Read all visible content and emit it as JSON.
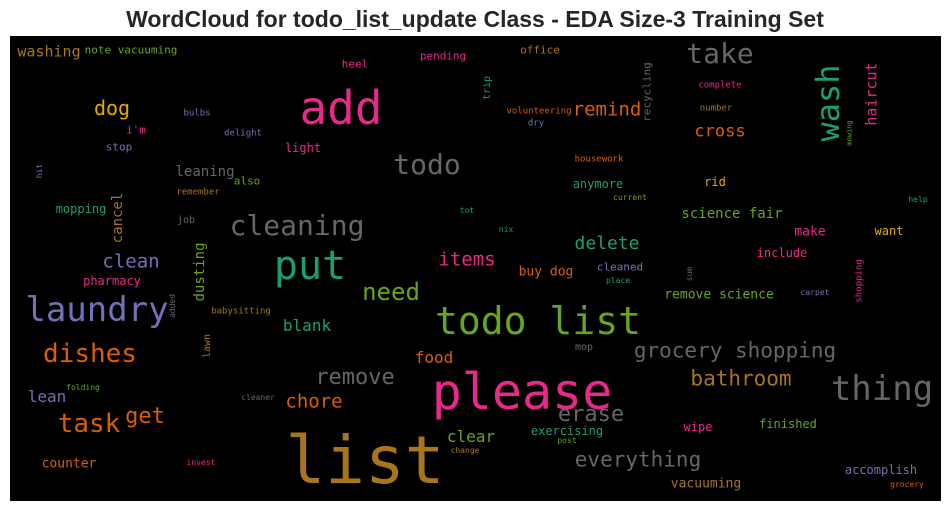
{
  "title": "WordCloud for todo_list_update Class - EDA Size-3 Training Set",
  "colors": {
    "background": "#000000",
    "pink": "#e7298a",
    "green": "#66a61e",
    "teal": "#1b9e77",
    "orange": "#d95f02",
    "mustard": "#e6ab02",
    "brown": "#a6761d",
    "purple": "#7570b3",
    "gray": "#666666"
  },
  "chart_data": {
    "type": "wordcloud",
    "words": [
      {
        "text": "list",
        "color": "brown",
        "rel": 1.0
      },
      {
        "text": "please",
        "color": "pink",
        "rel": 0.82
      },
      {
        "text": "todo list",
        "color": "green",
        "rel": 0.66
      },
      {
        "text": "add",
        "color": "pink",
        "rel": 0.74
      },
      {
        "text": "put",
        "color": "teal",
        "rel": 0.66
      },
      {
        "text": "laundry",
        "color": "purple",
        "rel": 0.6
      },
      {
        "text": "thing",
        "color": "gray",
        "rel": 0.58
      },
      {
        "text": "wash",
        "color": "teal",
        "rel": 0.54
      },
      {
        "text": "cleaning",
        "color": "gray",
        "rel": 0.46
      },
      {
        "text": "todo",
        "color": "gray",
        "rel": 0.47
      },
      {
        "text": "take",
        "color": "gray",
        "rel": 0.47
      },
      {
        "text": "dishes",
        "color": "orange",
        "rel": 0.44
      },
      {
        "text": "task",
        "color": "orange",
        "rel": 0.42
      },
      {
        "text": "need",
        "color": "green",
        "rel": 0.4
      },
      {
        "text": "remove",
        "color": "gray",
        "rel": 0.38
      },
      {
        "text": "erase",
        "color": "gray",
        "rel": 0.38
      },
      {
        "text": "get",
        "color": "orange",
        "rel": 0.38
      },
      {
        "text": "grocery shopping",
        "color": "gray",
        "rel": 0.37
      },
      {
        "text": "everything",
        "color": "gray",
        "rel": 0.37
      },
      {
        "text": "bathroom",
        "color": "brown",
        "rel": 0.36
      },
      {
        "text": "dog",
        "color": "mustard",
        "rel": 0.36
      },
      {
        "text": "clean",
        "color": "purple",
        "rel": 0.34
      },
      {
        "text": "items",
        "color": "pink",
        "rel": 0.34
      },
      {
        "text": "chore",
        "color": "orange",
        "rel": 0.33
      },
      {
        "text": "remind",
        "color": "orange",
        "rel": 0.33
      },
      {
        "text": "delete",
        "color": "teal",
        "rel": 0.31
      },
      {
        "text": "cross",
        "color": "orange",
        "rel": 0.29
      },
      {
        "text": "blank",
        "color": "teal",
        "rel": 0.28
      },
      {
        "text": "lean",
        "color": "purple",
        "rel": 0.27
      },
      {
        "text": "clear",
        "color": "green",
        "rel": 0.27
      },
      {
        "text": "food",
        "color": "orange",
        "rel": 0.27
      },
      {
        "text": "washing",
        "color": "brown",
        "rel": 0.26
      },
      {
        "text": "haircut",
        "color": "pink",
        "rel": 0.26
      },
      {
        "text": "science fair",
        "color": "green",
        "rel": 0.24
      },
      {
        "text": "cancel",
        "color": "brown",
        "rel": 0.24
      },
      {
        "text": "dusting",
        "color": "green",
        "rel": 0.24
      },
      {
        "text": "leaning",
        "color": "gray",
        "rel": 0.24
      },
      {
        "text": "buy dog",
        "color": "orange",
        "rel": 0.24
      },
      {
        "text": "vacuuming",
        "color": "brown",
        "rel": 0.24
      },
      {
        "text": "counter",
        "color": "orange",
        "rel": 0.24
      },
      {
        "text": "make",
        "color": "pink",
        "rel": 0.23
      },
      {
        "text": "remove science",
        "color": "green",
        "rel": 0.22
      },
      {
        "text": "mopping",
        "color": "teal",
        "rel": 0.21
      },
      {
        "text": "light",
        "color": "pink",
        "rel": 0.21
      },
      {
        "text": "wipe",
        "color": "pink",
        "rel": 0.21
      },
      {
        "text": "finished",
        "color": "green",
        "rel": 0.21
      },
      {
        "text": "accomplish",
        "color": "purple",
        "rel": 0.21
      },
      {
        "text": "anymore",
        "color": "teal",
        "rel": 0.2
      },
      {
        "text": "rid",
        "color": "mustard",
        "rel": 0.2
      },
      {
        "text": "exercising",
        "color": "teal",
        "rel": 0.2
      },
      {
        "text": "pharmacy",
        "color": "pink",
        "rel": 0.2
      },
      {
        "text": "want",
        "color": "mustard",
        "rel": 0.2
      },
      {
        "text": "include",
        "color": "pink",
        "rel": 0.2
      },
      {
        "text": "cleaned",
        "color": "purple",
        "rel": 0.19
      },
      {
        "text": "stop",
        "color": "purple",
        "rel": 0.19
      },
      {
        "text": "i'm",
        "color": "pink",
        "rel": 0.19
      },
      {
        "text": "also",
        "color": "green",
        "rel": 0.19
      },
      {
        "text": "recycling",
        "color": "gray",
        "rel": 0.19
      },
      {
        "text": "note vacuuming",
        "color": "green",
        "rel": 0.18
      },
      {
        "text": "pending",
        "color": "pink",
        "rel": 0.18
      },
      {
        "text": "office",
        "color": "brown",
        "rel": 0.18
      },
      {
        "text": "heel",
        "color": "pink",
        "rel": 0.18
      },
      {
        "text": "mop",
        "color": "gray",
        "rel": 0.17
      },
      {
        "text": "lawn",
        "color": "brown",
        "rel": 0.17
      },
      {
        "text": "trip",
        "color": "teal",
        "rel": 0.17
      },
      {
        "text": "shopping",
        "color": "pink",
        "rel": 0.15
      },
      {
        "text": "job",
        "color": "gray",
        "rel": 0.16
      },
      {
        "text": "bulbs",
        "color": "purple",
        "rel": 0.16
      },
      {
        "text": "volunteering",
        "color": "orange",
        "rel": 0.16
      },
      {
        "text": "housework",
        "color": "orange",
        "rel": 0.15
      },
      {
        "text": "babysitting",
        "color": "brown",
        "rel": 0.16
      },
      {
        "text": "dry",
        "color": "purple",
        "rel": 0.15
      },
      {
        "text": "delight",
        "color": "purple",
        "rel": 0.15
      },
      {
        "text": "remember",
        "color": "brown",
        "rel": 0.14
      },
      {
        "text": "complete",
        "color": "pink",
        "rel": 0.14
      },
      {
        "text": "number",
        "color": "brown",
        "rel": 0.14
      },
      {
        "text": "current",
        "color": "green",
        "rel": 0.14
      },
      {
        "text": "folding",
        "color": "green",
        "rel": 0.14
      },
      {
        "text": "tot",
        "color": "teal",
        "rel": 0.13
      },
      {
        "text": "nix",
        "color": "teal",
        "rel": 0.13
      },
      {
        "text": "place",
        "color": "teal",
        "rel": 0.13
      },
      {
        "text": "sum",
        "color": "gray",
        "rel": 0.12
      },
      {
        "text": "carpet",
        "color": "purple",
        "rel": 0.13
      },
      {
        "text": "help",
        "color": "teal",
        "rel": 0.13
      },
      {
        "text": "mowing",
        "color": "green",
        "rel": 0.12
      },
      {
        "text": "hit",
        "color": "purple",
        "rel": 0.13
      },
      {
        "text": "added",
        "color": "gray",
        "rel": 0.13
      },
      {
        "text": "cleaner",
        "color": "gray",
        "rel": 0.13
      },
      {
        "text": "post",
        "color": "green",
        "rel": 0.13
      },
      {
        "text": "change",
        "color": "brown",
        "rel": 0.13
      },
      {
        "text": "invest",
        "color": "pink",
        "rel": 0.13
      },
      {
        "text": "grocery",
        "color": "orange",
        "rel": 0.13
      }
    ]
  }
}
